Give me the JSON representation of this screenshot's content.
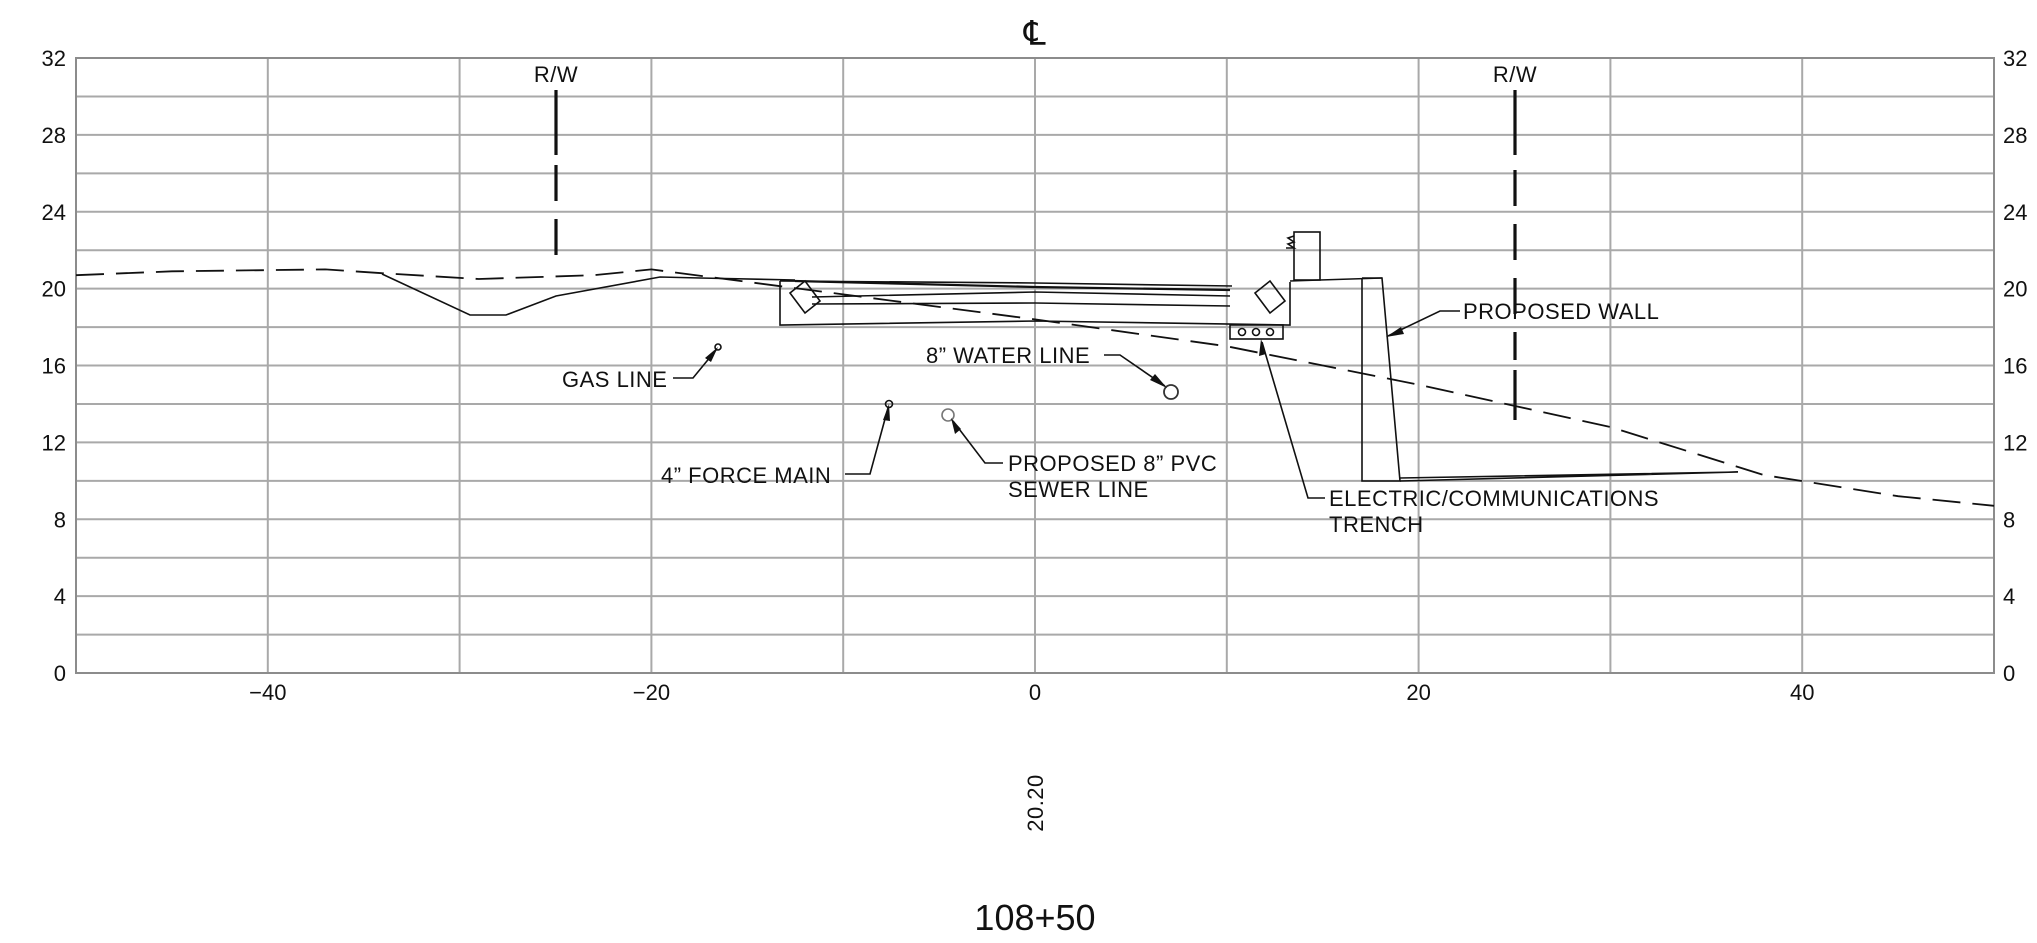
{
  "drawing": {
    "centerline_symbol": "℄",
    "row_label": "R/W",
    "elevation_value": "20.20",
    "station": "108+50"
  },
  "axes": {
    "x_ticks": [
      "−40",
      "−20",
      "0",
      "20",
      "40"
    ],
    "x_tick_values": [
      -40,
      -20,
      0,
      20,
      40
    ],
    "y_ticks": [
      "0",
      "4",
      "8",
      "12",
      "16",
      "20",
      "24",
      "28",
      "32"
    ],
    "y_tick_values": [
      0,
      4,
      8,
      12,
      16,
      20,
      24,
      28,
      32
    ],
    "x_range": [
      -50,
      50
    ],
    "y_range": [
      0,
      32
    ],
    "grid_spacing_x": 10,
    "grid_spacing_y": 2
  },
  "labels": {
    "gas_line": "GAS LINE",
    "force_main": "4” FORCE MAIN",
    "water_line": "8” WATER LINE",
    "sewer_line_1": "PROPOSED 8” PVC",
    "sewer_line_2": "SEWER LINE",
    "proposed_wall": "PROPOSED WALL",
    "trench_1": "ELECTRIC/COMMUNICATIONS",
    "trench_2": "TRENCH"
  },
  "utilities": [
    {
      "name": "gas line",
      "offset": -16.8,
      "elev": 17.0
    },
    {
      "name": "4in force main",
      "offset": -7.7,
      "elev": 14.0
    },
    {
      "name": "proposed 8in pvc sewer line",
      "offset": -4.6,
      "elev": 13.4
    },
    {
      "name": "8in water line",
      "offset": 7.0,
      "elev": 14.6
    }
  ],
  "right_of_way": [
    -25,
    25
  ],
  "existing_ground": [
    [
      -50,
      20.7
    ],
    [
      -45,
      20.9
    ],
    [
      -37,
      21.0
    ],
    [
      -34,
      20.8
    ],
    [
      -29,
      20.5
    ],
    [
      -23,
      20.7
    ],
    [
      -20,
      21.0
    ],
    [
      -10,
      19.7
    ],
    [
      0,
      18.4
    ],
    [
      10,
      17.0
    ],
    [
      20,
      15.0
    ],
    [
      30,
      12.8
    ],
    [
      38,
      10.3
    ],
    [
      45,
      9.2
    ],
    [
      50,
      8.7
    ]
  ]
}
